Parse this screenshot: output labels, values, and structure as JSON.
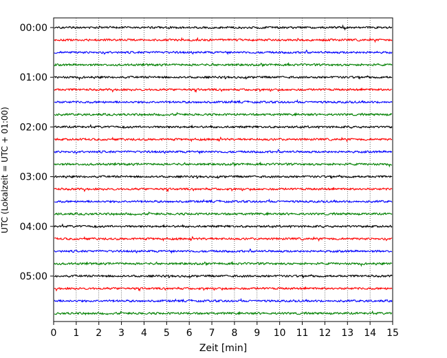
{
  "chart_data": {
    "type": "line",
    "title": "",
    "xlabel": "Zeit  [min]",
    "ylabel": "UTC (Lokalzeit = UTC + 01:00)",
    "xlim": [
      0,
      15
    ],
    "x_ticks": [
      "0",
      "1",
      "2",
      "3",
      "4",
      "5",
      "6",
      "7",
      "8",
      "9",
      "10",
      "11",
      "12",
      "13",
      "14",
      "15"
    ],
    "y_ticks": [
      "00:00",
      "01:00",
      "02:00",
      "03:00",
      "04:00",
      "05:00"
    ],
    "trace_interval_min": 15,
    "trace_count": 24,
    "trace_colors": [
      "#000000",
      "#ff0000",
      "#0000ff",
      "#008000"
    ],
    "vertical_grid": "dotted",
    "legend": "none"
  }
}
